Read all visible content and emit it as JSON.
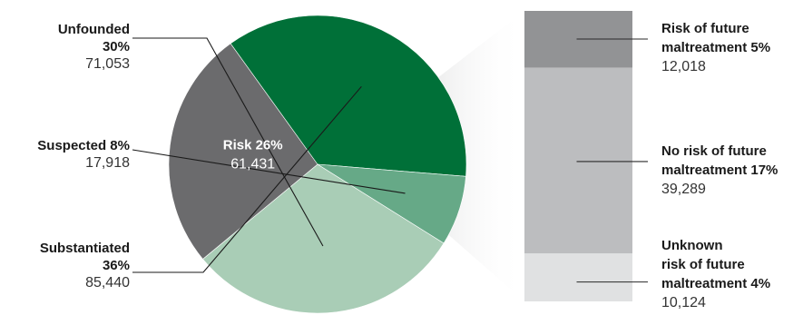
{
  "chart_data": {
    "type": "pie",
    "pie": {
      "slices": [
        {
          "label": "Unfounded",
          "label_lines": [
            "Unfounded",
            "30%"
          ],
          "percent": 30,
          "value": 71053,
          "value_text": "71,053",
          "color": "#a9cdb6"
        },
        {
          "label": "Risk",
          "label_lines": [
            "Risk 26%"
          ],
          "percent": 26,
          "value": 61431,
          "value_text": "61,431",
          "color": "#6b6b6d"
        },
        {
          "label": "Substantiated",
          "label_lines": [
            "Substantiated",
            "36%"
          ],
          "percent": 36,
          "value": 85440,
          "value_text": "85,440",
          "color": "#007038"
        },
        {
          "label": "Suspected",
          "label_lines": [
            "Suspected 8%"
          ],
          "percent": 8,
          "value": 17918,
          "value_text": "17,918",
          "color": "#66a987"
        }
      ]
    },
    "breakdown": {
      "of": "Risk",
      "segments": [
        {
          "label": "Risk of future maltreatment",
          "label_lines": [
            "Risk of future",
            "maltreatment 5%"
          ],
          "percent": 5,
          "value": 12018,
          "value_text": "12,018",
          "color": "#929395"
        },
        {
          "label": "No risk of future maltreatment",
          "label_lines": [
            "No risk of future",
            "maltreatment 17%"
          ],
          "percent": 17,
          "value": 39289,
          "value_text": "39,289",
          "color": "#bcbdbf"
        },
        {
          "label": "Unknown risk of future maltreatment",
          "label_lines": [
            "Unknown",
            "risk of future",
            "maltreatment 4%"
          ],
          "percent": 4,
          "value": 10124,
          "value_text": "10,124",
          "color": "#e0e1e2"
        }
      ]
    }
  }
}
